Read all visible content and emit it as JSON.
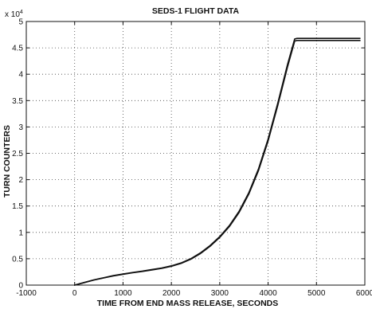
{
  "chart_data": {
    "type": "line",
    "title": "SEDS-1 FLIGHT DATA",
    "xlabel": "TIME FROM END MASS RELEASE, SECONDS",
    "ylabel": "TURN COUNTERS",
    "y_multiplier": {
      "base": "x 10",
      "exponent": "4"
    },
    "xlim": [
      -1000,
      6000
    ],
    "ylim": [
      0,
      50000
    ],
    "grid": true,
    "x_ticks": [
      -1000,
      0,
      1000,
      2000,
      3000,
      4000,
      5000,
      6000
    ],
    "x_tick_labels": [
      "-1000",
      "0",
      "1000",
      "2000",
      "3000",
      "4000",
      "5000",
      "6000"
    ],
    "y_ticks": [
      0,
      5000,
      10000,
      15000,
      20000,
      25000,
      30000,
      35000,
      40000,
      45000,
      50000
    ],
    "y_tick_labels": [
      "0",
      "0.5",
      "1",
      "1.5",
      "2",
      "2.5",
      "3",
      "3.5",
      "4",
      "4.5",
      "5"
    ],
    "series": [
      {
        "x": [
          0,
          200,
          400,
          600,
          800,
          1000,
          1200,
          1400,
          1600,
          1800,
          2000,
          2200,
          2400,
          2600,
          2800,
          3000,
          3200,
          3400,
          3600,
          3800,
          4000,
          4200,
          4400,
          4550,
          4600,
          5000,
          5500,
          5900
        ],
        "values": [
          0,
          500,
          1000,
          1400,
          1800,
          2100,
          2400,
          2650,
          2950,
          3250,
          3650,
          4200,
          5000,
          6100,
          7500,
          9200,
          11300,
          14000,
          17500,
          22000,
          27700,
          34500,
          41800,
          46700,
          46800,
          46800,
          46800,
          46800
        ]
      },
      {
        "x": [
          0,
          200,
          400,
          600,
          800,
          1000,
          1200,
          1400,
          1600,
          1800,
          2000,
          2200,
          2400,
          2600,
          2800,
          3000,
          3200,
          3400,
          3600,
          3800,
          4000,
          4200,
          4400,
          4550,
          4600,
          5000,
          5500,
          5900
        ],
        "values": [
          0,
          480,
          960,
          1360,
          1750,
          2050,
          2340,
          2590,
          2880,
          3180,
          3570,
          4110,
          4900,
          5980,
          7360,
          9050,
          11120,
          13780,
          17250,
          21700,
          27350,
          34100,
          41350,
          46300,
          46400,
          46400,
          46400,
          46400
        ]
      }
    ]
  }
}
